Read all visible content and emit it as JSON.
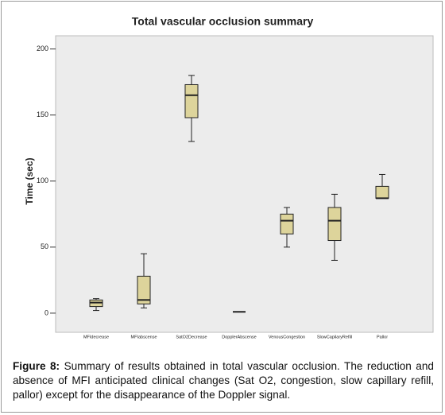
{
  "chart_data": {
    "type": "box",
    "title": "Total vascular occlusion summary",
    "y_label": "Time (sec)",
    "categories": [
      "MFIdecrease",
      "MFIabscense",
      "SatO2Decrease",
      "DopplerAbscense",
      "VenousCongestion",
      "SlowCapilaryRefill",
      "Pallor"
    ],
    "min": [
      2,
      4,
      130,
      1,
      50,
      40,
      87
    ],
    "q1": [
      5,
      7,
      148,
      1,
      60,
      55,
      87
    ],
    "median": [
      8,
      10,
      165,
      1,
      70,
      70,
      87
    ],
    "q3": [
      10,
      28,
      173,
      1,
      75,
      80,
      96
    ],
    "max": [
      11,
      45,
      180,
      1,
      80,
      90,
      105
    ],
    "color": "#ddd49b",
    "ylim": [
      -14.5,
      210
    ],
    "yticks": [
      0,
      50,
      100,
      150,
      200
    ]
  },
  "caption": {
    "label": "Figure 8:",
    "text": "Summary of results obtained in total vascular occlusion. The reduction and absence of MFI anticipated clinical changes (Sat O2, congestion, slow capillary refill, pallor) except for the disappearance of the Doppler signal."
  }
}
